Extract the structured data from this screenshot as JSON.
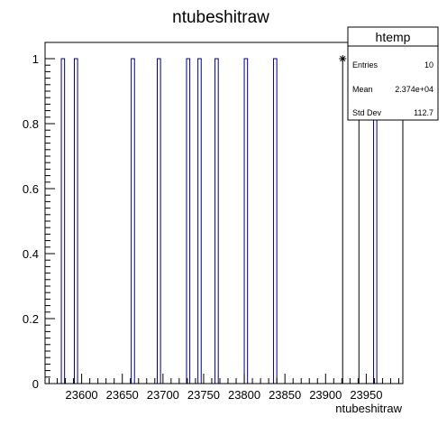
{
  "chart_data": {
    "type": "bar",
    "title": "ntubeshitraw",
    "xlabel": "ntubeshitraw",
    "ylabel": "",
    "xlim": [
      23555,
      23995
    ],
    "ylim": [
      0,
      1.05
    ],
    "bin_width": 4,
    "bins": [
      {
        "x": 23577,
        "value": 1
      },
      {
        "x": 23593,
        "value": 1
      },
      {
        "x": 23663,
        "value": 1
      },
      {
        "x": 23695,
        "value": 1
      },
      {
        "x": 23731,
        "value": 1
      },
      {
        "x": 23745,
        "value": 1
      },
      {
        "x": 23766,
        "value": 1
      },
      {
        "x": 23802,
        "value": 1
      },
      {
        "x": 23838,
        "value": 1
      },
      {
        "x": 23961,
        "value": 1
      }
    ],
    "markers": [
      {
        "x": 23921,
        "y": 1
      },
      {
        "x": 23941,
        "y": 1
      }
    ],
    "marker_bars": [
      {
        "x": 23921,
        "y": 1
      },
      {
        "x": 23941,
        "y": 1
      }
    ],
    "x_ticks": [
      23600,
      23650,
      23700,
      23750,
      23800,
      23850,
      23900,
      23950
    ],
    "y_ticks": [
      "0",
      "0.2",
      "0.4",
      "0.6",
      "0.8",
      "1"
    ],
    "grid": false,
    "legend": "none",
    "colors": {
      "hist_line": "#000080",
      "frame": "#000000",
      "marker": "#000000"
    }
  },
  "stats_box": {
    "title": "htemp",
    "rows": [
      {
        "label": "Entries",
        "value": "10"
      },
      {
        "label": "Mean",
        "value": "2.374e+04"
      },
      {
        "label": "Std Dev",
        "value": "112.7"
      }
    ]
  }
}
